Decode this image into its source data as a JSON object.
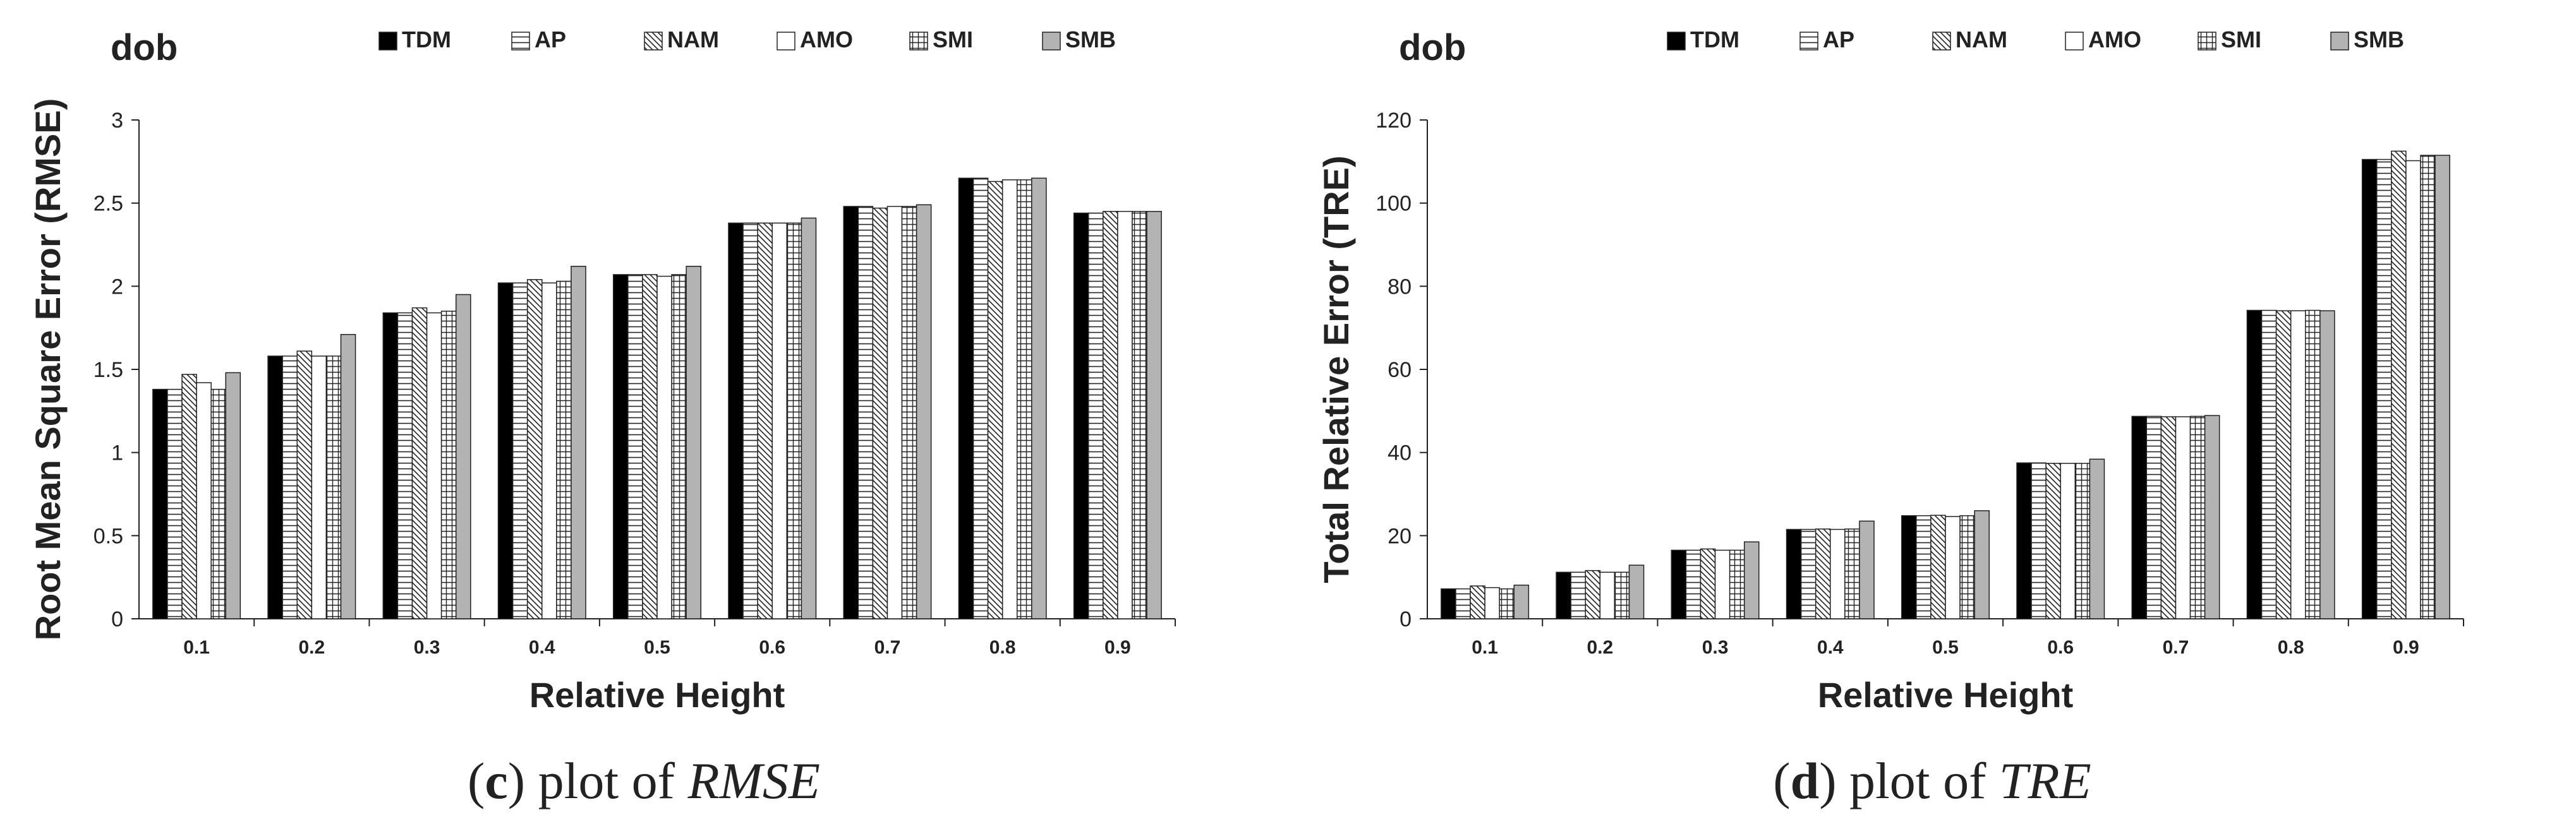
{
  "colors": {
    "TDM": "#000000",
    "AP": "#ffffff",
    "NAM": "#ffffff",
    "AMO": "#ffffff",
    "SMI": "#ffffff",
    "SMB": "#b3b3b3",
    "axis": "#222222"
  },
  "legend": [
    "TDM",
    "AP",
    "NAM",
    "AMO",
    "SMI",
    "SMB"
  ],
  "patterns": {
    "TDM": "solid-black",
    "AP": "horizontal-lines",
    "NAM": "diagonal-lines",
    "AMO": "solid-white",
    "SMI": "grid",
    "SMB": "solid-gray"
  },
  "panels": [
    {
      "caption_label": "c",
      "caption_pre": ") plot of ",
      "caption_italic": "RMSE"
    },
    {
      "caption_label": "d",
      "caption_pre": ") plot of ",
      "caption_italic": "TRE"
    }
  ],
  "chart_data": [
    {
      "type": "bar",
      "title": "dob",
      "xlabel": "Relative Height",
      "ylabel": "Root Mean Square Error (RMSE)",
      "ylim": [
        0,
        3
      ],
      "yticks": [
        "0",
        "0.5",
        "1",
        "1.5",
        "2",
        "2.5",
        "3"
      ],
      "yticks_values": [
        0,
        0.5,
        1,
        1.5,
        2,
        2.5,
        3
      ],
      "categories": [
        "0.1",
        "0.2",
        "0.3",
        "0.4",
        "0.5",
        "0.6",
        "0.7",
        "0.8",
        "0.9"
      ],
      "legend_position": "top",
      "grid": false,
      "series": [
        {
          "name": "TDM",
          "values": [
            1.38,
            1.58,
            1.84,
            2.02,
            2.07,
            2.38,
            2.48,
            2.65,
            2.44
          ]
        },
        {
          "name": "AP",
          "values": [
            1.38,
            1.58,
            1.84,
            2.02,
            2.07,
            2.38,
            2.48,
            2.65,
            2.44
          ]
        },
        {
          "name": "NAM",
          "values": [
            1.47,
            1.61,
            1.87,
            2.04,
            2.07,
            2.38,
            2.47,
            2.63,
            2.45
          ]
        },
        {
          "name": "AMO",
          "values": [
            1.42,
            1.58,
            1.84,
            2.02,
            2.06,
            2.38,
            2.48,
            2.64,
            2.45
          ]
        },
        {
          "name": "SMI",
          "values": [
            1.38,
            1.58,
            1.85,
            2.03,
            2.07,
            2.38,
            2.48,
            2.64,
            2.45
          ]
        },
        {
          "name": "SMB",
          "values": [
            1.48,
            1.71,
            1.95,
            2.12,
            2.12,
            2.41,
            2.49,
            2.65,
            2.45
          ]
        }
      ]
    },
    {
      "type": "bar",
      "title": "dob",
      "xlabel": "Relative Height",
      "ylabel": "Total Relative Error (TRE)",
      "ylim": [
        0,
        120
      ],
      "yticks": [
        "0",
        "20",
        "40",
        "60",
        "80",
        "100",
        "120"
      ],
      "yticks_values": [
        0,
        20,
        40,
        60,
        80,
        100,
        120
      ],
      "categories": [
        "0.1",
        "0.2",
        "0.3",
        "0.4",
        "0.5",
        "0.6",
        "0.7",
        "0.8",
        "0.9"
      ],
      "legend_position": "top",
      "grid": false,
      "series": [
        {
          "name": "TDM",
          "values": [
            7.2,
            11.2,
            16.5,
            21.5,
            24.8,
            37.5,
            48.7,
            74.2,
            110.5
          ]
        },
        {
          "name": "AP",
          "values": [
            7.2,
            11.2,
            16.5,
            21.5,
            24.8,
            37.5,
            48.7,
            74.2,
            110.5
          ]
        },
        {
          "name": "NAM",
          "values": [
            7.9,
            11.6,
            16.8,
            21.6,
            24.9,
            37.4,
            48.6,
            74.1,
            112.5
          ]
        },
        {
          "name": "AMO",
          "values": [
            7.5,
            11.2,
            16.5,
            21.5,
            24.6,
            37.4,
            48.6,
            74.1,
            110.2
          ]
        },
        {
          "name": "SMI",
          "values": [
            7.2,
            11.2,
            16.5,
            21.6,
            24.8,
            37.4,
            48.7,
            74.2,
            111.5
          ]
        },
        {
          "name": "SMB",
          "values": [
            8.1,
            12.9,
            18.5,
            23.5,
            26.0,
            38.4,
            48.9,
            74.1,
            111.5
          ]
        }
      ]
    }
  ]
}
